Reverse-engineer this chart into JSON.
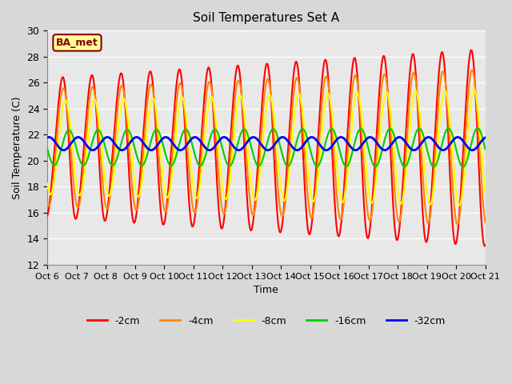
{
  "title": "Soil Temperatures Set A",
  "xlabel": "Time",
  "ylabel": "Soil Temperature (C)",
  "ylim": [
    12,
    30
  ],
  "xlim": [
    0,
    360
  ],
  "background_color": "#d8d8d8",
  "plot_bg_color": "#e8e8e8",
  "grid_color": "#ffffff",
  "line_colors": {
    "-2cm": "#ff0000",
    "-4cm": "#ff8800",
    "-8cm": "#ffff00",
    "-16cm": "#00cc00",
    "-32cm": "#0000ff"
  },
  "line_widths": {
    "-2cm": 1.5,
    "-4cm": 1.5,
    "-8cm": 1.5,
    "-16cm": 1.5,
    "-32cm": 2.0
  },
  "xtick_labels": [
    "Oct 6",
    "Oct 7",
    "Oct 8",
    "Oct 9",
    "Oct 10",
    "Oct 11",
    "Oct 12",
    "Oct 13",
    "Oct 14",
    "Oct 15",
    "Oct 16",
    "Oct 17",
    "Oct 18",
    "Oct 19",
    "Oct 20",
    "Oct 21"
  ],
  "ytick_values": [
    12,
    14,
    16,
    18,
    20,
    22,
    24,
    26,
    28,
    30
  ],
  "ba_met_label": "BA_met",
  "ba_met_bg": "#ffff99",
  "ba_met_border": "#8b0000",
  "ba_met_text_color": "#8b0000",
  "legend_entries": [
    "-2cm",
    "-4cm",
    "-8cm",
    "-16cm",
    "-32cm"
  ]
}
